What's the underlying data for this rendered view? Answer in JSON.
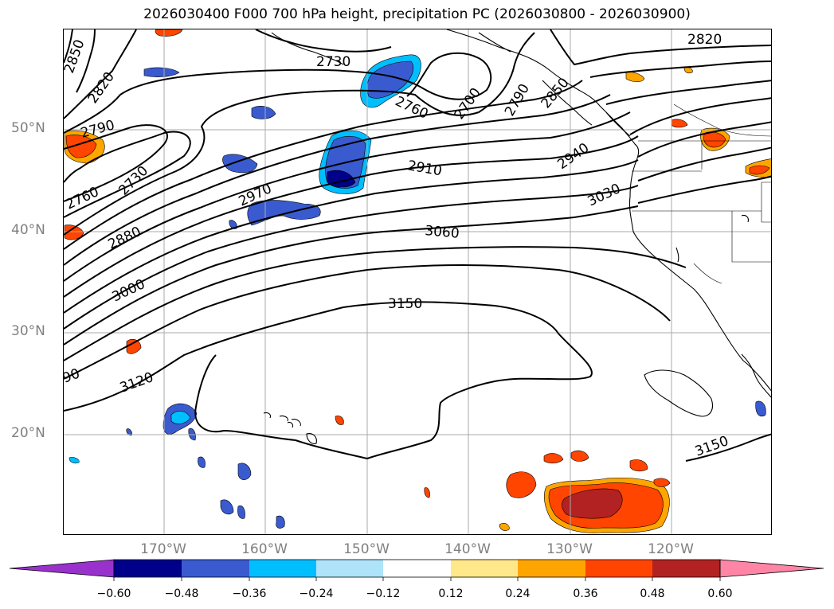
{
  "title": "2026030400 F000 700 hPa height, precipitation PC (2026030800 - 2026030900)",
  "lat_labels": [
    "50°N",
    "40°N",
    "30°N",
    "20°N"
  ],
  "lon_labels": [
    "170°W",
    "160°W",
    "150°W",
    "140°W",
    "130°W",
    "120°W"
  ],
  "contour_labels": [
    "2850",
    "2820",
    "2790",
    "2730",
    "2760",
    "2880",
    "3000",
    "2970",
    "2910",
    "3060",
    "3150",
    "3120",
    "3150",
    "3030",
    "2940",
    "2730",
    "2760",
    "2700",
    "2790",
    "2850",
    "2820",
    "90"
  ],
  "colorbar": {
    "ticks": [
      "−0.60",
      "−0.48",
      "−0.36",
      "−0.24",
      "−0.12",
      "0.12",
      "0.24",
      "0.36",
      "0.48",
      "0.60"
    ],
    "colors": [
      "#9932cc",
      "#00008b",
      "#3a5bcf",
      "#00bfff",
      "#aee3fa",
      "#ffffff",
      "#ffe88a",
      "#ffa500",
      "#ff4500",
      "#b22222",
      "#ff85a6"
    ]
  },
  "colors": {
    "contour": "#000000",
    "grid": "#aaaaaa",
    "axis_label": "#808080"
  }
}
